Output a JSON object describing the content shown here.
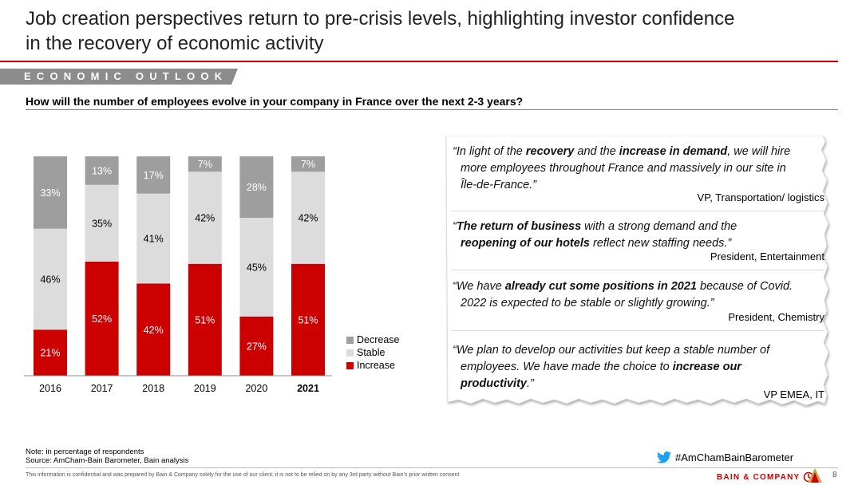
{
  "header": {
    "title_line1": "Job creation perspectives return to pre-crisis levels, highlighting investor confidence",
    "title_line2": "in the recovery of economic activity",
    "section": "ECONOMIC OUTLOOK",
    "question": "How will the number of employees evolve in your company in France over the next 2-3 years?"
  },
  "chart_data": {
    "type": "bar",
    "stacked": true,
    "percent_labels": true,
    "categories": [
      "2016",
      "2017",
      "2018",
      "2019",
      "2020",
      "2021"
    ],
    "highlighted_category": "2021",
    "ylim": [
      0,
      100
    ],
    "legend_placement": "right",
    "series": [
      {
        "name": "Increase",
        "color": "#cc0000",
        "label_color": "#ffffff",
        "values": [
          21,
          52,
          42,
          51,
          27,
          51
        ]
      },
      {
        "name": "Stable",
        "color": "#dcdcdc",
        "label_color": "#000000",
        "values": [
          46,
          35,
          41,
          42,
          45,
          42
        ]
      },
      {
        "name": "Decrease",
        "color": "#9e9e9e",
        "label_color": "#ffffff",
        "values": [
          33,
          13,
          17,
          7,
          28,
          7
        ]
      }
    ],
    "legend_order": [
      "Decrease",
      "Stable",
      "Increase"
    ]
  },
  "quotes": [
    {
      "parts": [
        {
          "t": "“In light of the ",
          "b": false
        },
        {
          "t": "recovery",
          "b": true
        },
        {
          "t": " and the ",
          "b": false
        },
        {
          "t": "increase in demand",
          "b": true
        },
        {
          "t": ", we will hire",
          "b": false
        }
      ],
      "line2": "more employees throughout France and massively in our site in",
      "line3": "Île-de-France.”",
      "author": "VP, Transportation/ logistics"
    },
    {
      "parts": [
        {
          "t": "“",
          "b": false
        },
        {
          "t": "The return of business",
          "b": true
        },
        {
          "t": " with a strong demand and the",
          "b": false
        }
      ],
      "parts2": [
        {
          "t": "reopening of our hotels",
          "b": true
        },
        {
          "t": " reflect new staffing needs.”",
          "b": false
        }
      ],
      "author": "President, Entertainment"
    },
    {
      "parts": [
        {
          "t": "“We have ",
          "b": false
        },
        {
          "t": "already cut some positions in 2021",
          "b": true
        },
        {
          "t": " because of Covid.",
          "b": false
        }
      ],
      "line2": "2022 is expected to be stable or slightly growing.”",
      "author": "President, Chemistry"
    },
    {
      "line1": "“We plan to develop our activities but keep a stable number of",
      "parts2": [
        {
          "t": "employees. We have made the choice to ",
          "b": false
        },
        {
          "t": "increase our",
          "b": true
        }
      ],
      "parts3": [
        {
          "t": "productivity",
          "b": true
        },
        {
          "t": ".”",
          "b": false
        }
      ],
      "author": "VP EMEA, IT"
    }
  ],
  "footer": {
    "note": "Note: in percentage of respondents",
    "source": "Source: AmCham-Bain Barometer, Bain analysis",
    "hashtag": "#AmChamBainBarometer",
    "disclaimer": "This information is confidential and was prepared by Bain & Company solely for the use of our client; it is not to be relied on by any 3rd party without Bain's prior written consent",
    "brand": "BAIN & COMPANY",
    "page": "8",
    "twitter_icon": "twitter-bird-icon",
    "brand_icon": "bain-logo-icon",
    "amcham_icon": "amcham-logo-icon"
  }
}
